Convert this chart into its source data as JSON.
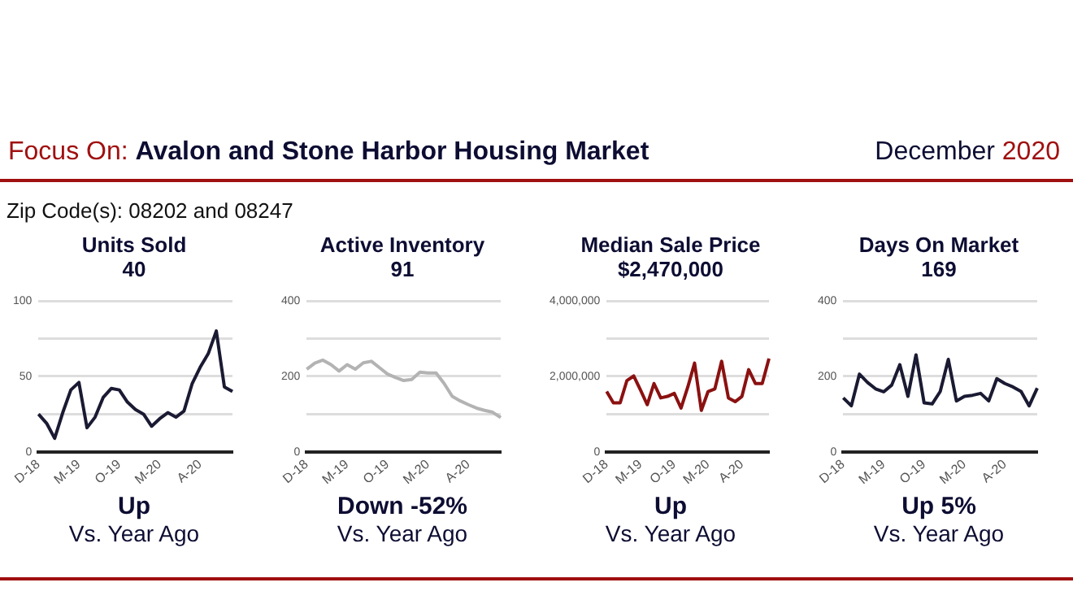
{
  "chart_data": [
    {
      "type": "other",
      "annotations": [
        "Focus On:",
        "Avalon and Stone Harbor Housing Market",
        "December",
        "2020",
        "Zip Code(s): 08202 and 08247"
      ]
    },
    {
      "type": "line",
      "title": "Units Sold",
      "subtitle": "40",
      "annotations": [
        "Up",
        "Vs. Year Ago"
      ],
      "categories": [
        "D-18",
        null,
        null,
        null,
        null,
        "M-19",
        null,
        null,
        null,
        null,
        "O-19",
        null,
        null,
        null,
        null,
        "M-20",
        null,
        null,
        null,
        null,
        "A-20",
        null,
        null,
        null,
        null
      ],
      "series": [
        {
          "color": "#1a1a33",
          "values": [
            25,
            19,
            9,
            26,
            41,
            46,
            16,
            23,
            36,
            42,
            41,
            33,
            28,
            25,
            17,
            22,
            26,
            23,
            27,
            45,
            56,
            65,
            80,
            43,
            40
          ]
        }
      ],
      "ylim": [
        0,
        100
      ],
      "yticks": [
        0,
        {
          "value": 25,
          "label": null
        },
        50,
        {
          "value": 75,
          "label": null
        },
        100
      ],
      "grid": "y",
      "legend": false,
      "marker": "none"
    },
    {
      "type": "line",
      "title": "Active Inventory",
      "subtitle": "91",
      "annotations": [
        "Down -52%",
        "Vs. Year Ago"
      ],
      "categories": [
        "D-18",
        null,
        null,
        null,
        null,
        "M-19",
        null,
        null,
        null,
        null,
        "O-19",
        null,
        null,
        null,
        null,
        "M-20",
        null,
        null,
        null,
        null,
        "A-20",
        null,
        null,
        null,
        null
      ],
      "series": [
        {
          "color": "#b3b3b3",
          "values": [
            219,
            235,
            243,
            231,
            214,
            231,
            219,
            236,
            240,
            223,
            206,
            197,
            189,
            192,
            211,
            209,
            209,
            181,
            147,
            135,
            125,
            116,
            110,
            105,
            91
          ]
        }
      ],
      "ylim": [
        0,
        400
      ],
      "yticks": [
        0,
        {
          "value": 100,
          "label": null
        },
        200,
        {
          "value": 300,
          "label": null
        },
        400
      ],
      "grid": "y",
      "legend": false,
      "marker": "none"
    },
    {
      "type": "line",
      "title": "Median Sale Price",
      "subtitle": "$2,470,000",
      "annotations": [
        "Up",
        "Vs. Year Ago"
      ],
      "categories": [
        "D-18",
        null,
        null,
        null,
        null,
        "M-19",
        null,
        null,
        null,
        null,
        "O-19",
        null,
        null,
        null,
        null,
        "M-20",
        null,
        null,
        null,
        null,
        "A-20",
        null,
        null,
        null,
        null
      ],
      "series": [
        {
          "color": "#8b1111",
          "values": [
            1600000,
            1300000,
            1300000,
            1890000,
            2010000,
            1640000,
            1250000,
            1810000,
            1430000,
            1470000,
            1550000,
            1160000,
            1720000,
            2350000,
            1100000,
            1600000,
            1670000,
            2400000,
            1430000,
            1330000,
            1470000,
            2180000,
            1810000,
            1810000,
            2470000
          ]
        }
      ],
      "ylim": [
        0,
        4000000
      ],
      "yticks": [
        0,
        {
          "value": 1000000,
          "label": null
        },
        {
          "value": 2000000,
          "label": "2,000,000"
        },
        {
          "value": 3000000,
          "label": null
        },
        {
          "value": 4000000,
          "label": "4,000,000"
        }
      ],
      "grid": "y",
      "legend": false,
      "marker": "none"
    },
    {
      "type": "line",
      "title": "Days On Market",
      "subtitle": "169",
      "annotations": [
        "Up 5%",
        "Vs. Year Ago"
      ],
      "categories": [
        "D-18",
        null,
        null,
        null,
        null,
        "M-19",
        null,
        null,
        null,
        null,
        "O-19",
        null,
        null,
        null,
        null,
        "M-20",
        null,
        null,
        null,
        null,
        "A-20",
        null,
        null,
        null,
        null
      ],
      "series": [
        {
          "color": "#1a1a33",
          "values": [
            143,
            122,
            206,
            184,
            167,
            159,
            177,
            231,
            147,
            257,
            130,
            127,
            160,
            245,
            135,
            147,
            150,
            155,
            135,
            194,
            181,
            172,
            160,
            122,
            169
          ]
        }
      ],
      "ylim": [
        0,
        400
      ],
      "yticks": [
        0,
        {
          "value": 100,
          "label": null
        },
        200,
        {
          "value": 300,
          "label": null
        },
        400
      ],
      "grid": "y",
      "legend": false,
      "marker": "none"
    }
  ]
}
